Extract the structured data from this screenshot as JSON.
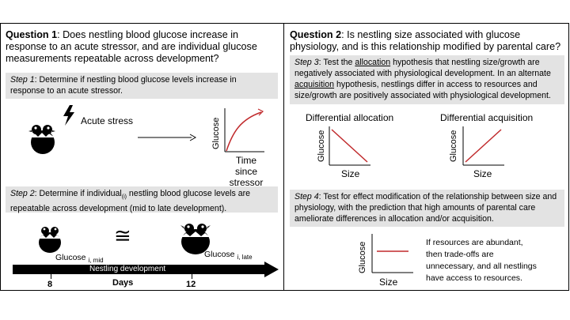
{
  "q1": {
    "bold": "Question 1",
    "text": ": Does nestling blood glucose increase in response to an acute stressor, and are individual glucose measurements repeatable across development?"
  },
  "q2": {
    "bold": "Question 2",
    "text": ": Is nestling size associated with glucose physiology, and is this relationship modified by parental care?"
  },
  "step1": {
    "label": "Step 1",
    "text": ": Determine if nestling blood glucose levels increase in response to an acute stressor."
  },
  "step2": {
    "label": "Step 2",
    "text_a": ": Determine if individual",
    "sub": "(i)",
    "text_b": " nestling blood glucose levels are repeatable across development (mid to late development)."
  },
  "step3": {
    "label": "Step 3",
    "text_a": ": Test the ",
    "allocation": "allocation",
    "text_b": " hypothesis that nestling size/growth are negatively associated with physiological development. In an alternate ",
    "acquisition": "acquisition",
    "text_c": " hypothesis, nestlings differ in access to resources and size/growth are positively associated with physiological development."
  },
  "step4": {
    "label": "Step 4",
    "text": ": Test for effect modification of the relationship between size and physiology, with the prediction that high amounts of parental care ameliorate differences in allocation and/or acquisition."
  },
  "stress_panel": {
    "acute_stress": "Acute stress",
    "y_label": "Glucose",
    "x_label_line1": "Time since",
    "x_label_line2": "stressor"
  },
  "repeat_panel": {
    "glucose_mid": "Glucose",
    "glucose_mid_sub": "i, mid",
    "glucose_late": "Glucose",
    "glucose_late_sub": "i, late",
    "approx_symbol": "≅",
    "arrow_label": "Nestling development",
    "tick_8": "8",
    "tick_12": "12",
    "days": "Days"
  },
  "alloc_panel": {
    "title_allocation": "Differential allocation",
    "title_acquisition": "Differential acquisition",
    "y_label": "Glucose",
    "x_label": "Size"
  },
  "care_panel": {
    "y_label": "Glucose",
    "x_label": "Size",
    "note_line1": "If resources are abundant,",
    "note_line2": "then trade-offs are",
    "note_line3": "unnecessary, and all nestlings",
    "note_line4": "have access to resources."
  },
  "colors": {
    "accent_red": "#c0292b",
    "step_bg": "#e3e3e3"
  }
}
